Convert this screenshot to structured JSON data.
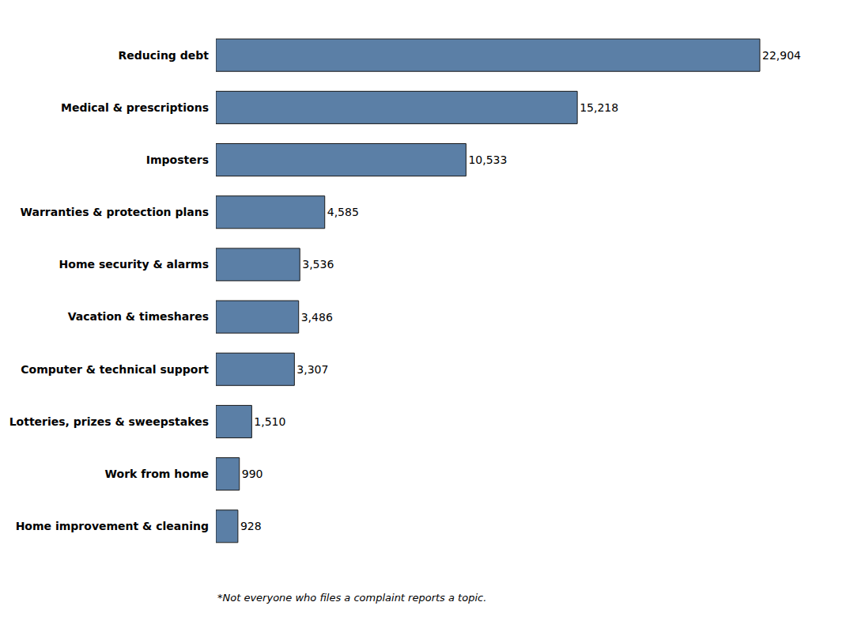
{
  "chart_data": {
    "type": "bar",
    "orientation": "horizontal",
    "categories": [
      "Home improvement & cleaning",
      "Work from home",
      "Lotteries, prizes & sweepstakes",
      "Computer & technical support",
      "Vacation & timeshares",
      "Home security & alarms",
      "Warranties & protection plans",
      "Imposters",
      "Medical & prescriptions",
      "Reducing debt"
    ],
    "values": [
      928,
      990,
      1510,
      3307,
      3486,
      3536,
      4585,
      10533,
      15218,
      22904
    ],
    "value_labels": [
      "928",
      "990",
      "1,510",
      "3,307",
      "3,486",
      "3,536",
      "4,585",
      "10,533",
      "15,218",
      "22,904"
    ],
    "data_labels": true,
    "color": "#5b7fa6",
    "xlim": [
      0,
      26000
    ],
    "tick_labels": "y",
    "grid": false,
    "annotations": [
      "*Not everyone who files a complaint reports a topic."
    ]
  }
}
